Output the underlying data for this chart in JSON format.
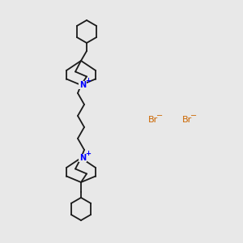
{
  "bg_color": "#e8e8e8",
  "bond_color": "#1a1a1a",
  "N_color": "#0000ff",
  "Br_color": "#cc6600",
  "bond_width": 1.3,
  "fig_size": [
    3.0,
    3.0
  ],
  "dpi": 100,
  "Br1_label": "Br",
  "Br1_charge": "−",
  "Br2_label": "Br",
  "Br2_charge": "−",
  "N_label": "N",
  "N_charge": "+"
}
